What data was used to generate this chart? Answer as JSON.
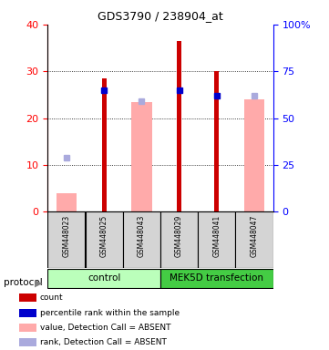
{
  "title": "GDS3790 / 238904_at",
  "samples": [
    "GSM448023",
    "GSM448025",
    "GSM448043",
    "GSM448029",
    "GSM448041",
    "GSM448047"
  ],
  "count_values": [
    null,
    28.5,
    null,
    36.5,
    30.0,
    null
  ],
  "rank_values_right": [
    null,
    65.0,
    null,
    65.0,
    62.0,
    null
  ],
  "value_absent_left": [
    4.0,
    null,
    23.5,
    null,
    null,
    24.0
  ],
  "rank_absent_right": [
    29.0,
    null,
    59.0,
    null,
    null,
    62.0
  ],
  "ylim_left": [
    0,
    40
  ],
  "ylim_right": [
    0,
    100
  ],
  "yticks_left": [
    0,
    10,
    20,
    30,
    40
  ],
  "yticks_right": [
    0,
    25,
    50,
    75,
    100
  ],
  "color_count": "#cc0000",
  "color_rank": "#0000cc",
  "color_value_absent": "#ffaaaa",
  "color_rank_absent": "#aaaadd",
  "color_control_bg": "#bbffbb",
  "color_mek_bg": "#44cc44",
  "color_sample_box": "#d4d4d4",
  "wide_bar_width": 0.55,
  "narrow_bar_width": 0.12,
  "square_marker_size": 5,
  "legend_items": [
    {
      "color": "#cc0000",
      "label": "count"
    },
    {
      "color": "#0000cc",
      "label": "percentile rank within the sample"
    },
    {
      "color": "#ffaaaa",
      "label": "value, Detection Call = ABSENT"
    },
    {
      "color": "#aaaadd",
      "label": "rank, Detection Call = ABSENT"
    }
  ]
}
